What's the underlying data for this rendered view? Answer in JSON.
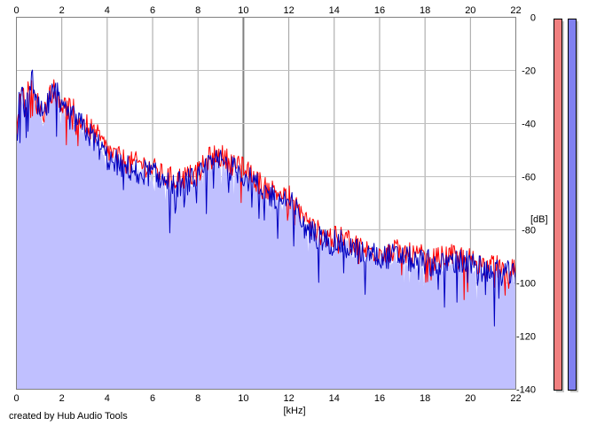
{
  "chart_data": {
    "type": "line",
    "xlabel": "[kHz]",
    "ylabel": "[dB]",
    "xlim": [
      0,
      22
    ],
    "ylim": [
      -140,
      0
    ],
    "x_ticks": [
      0,
      2,
      4,
      6,
      8,
      10,
      12,
      14,
      16,
      18,
      20,
      22
    ],
    "y_ticks": [
      0,
      -20,
      -40,
      -60,
      -80,
      -100,
      -120,
      -140
    ],
    "y_tick_labels": [
      "0",
      "-20",
      "-40",
      "-60",
      "-80",
      "-100",
      "-120",
      "-140"
    ],
    "grid": true,
    "fill_color": "#c0c0ff",
    "series": [
      {
        "color": "#ff0000",
        "x": [
          0,
          0.1,
          0.2,
          0.3,
          0.4,
          0.5,
          0.6,
          0.7,
          0.8,
          1,
          1.2,
          1.5,
          1.8,
          2,
          2.5,
          3,
          3.5,
          4,
          4.5,
          5,
          5.5,
          6,
          6.5,
          7,
          7.5,
          8,
          8.5,
          9,
          9.5,
          10,
          10.5,
          11,
          11.5,
          12,
          12.5,
          13,
          13.5,
          14,
          14.5,
          15,
          15.5,
          16,
          16.5,
          17,
          17.5,
          18,
          18.5,
          19,
          19.5,
          20,
          20.5,
          21,
          21.5,
          22
        ],
        "values": [
          -45,
          -32,
          -26,
          -30,
          -33,
          -29,
          -24,
          -28,
          -31,
          -33,
          -36,
          -28,
          -27,
          -33,
          -35,
          -40,
          -44,
          -50,
          -53,
          -55,
          -55,
          -57,
          -60,
          -61,
          -60,
          -59,
          -53,
          -52,
          -55,
          -57,
          -61,
          -64,
          -66,
          -67,
          -73,
          -79,
          -82,
          -83,
          -83,
          -86,
          -88,
          -88,
          -88,
          -88,
          -90,
          -90,
          -91,
          -90,
          -90,
          -91,
          -93,
          -94,
          -94,
          -96
        ]
      },
      {
        "color": "#0000c0",
        "x": [
          0,
          0.1,
          0.2,
          0.3,
          0.4,
          0.5,
          0.6,
          0.7,
          0.8,
          1,
          1.2,
          1.5,
          1.8,
          2,
          2.5,
          3,
          3.5,
          4,
          4.5,
          5,
          5.5,
          6,
          6.5,
          7,
          7.5,
          8,
          8.5,
          9,
          9.5,
          10,
          10.5,
          11,
          11.5,
          12,
          12.5,
          13,
          13.5,
          14,
          14.5,
          15,
          15.5,
          16,
          16.5,
          17,
          17.5,
          18,
          18.5,
          19,
          19.5,
          20,
          20.5,
          21,
          21.5,
          22
        ],
        "values": [
          -48,
          -34,
          -28,
          -32,
          -35,
          -31,
          -26,
          -22,
          -33,
          -35,
          -38,
          -30,
          -29,
          -36,
          -38,
          -42,
          -47,
          -53,
          -55,
          -57,
          -58,
          -59,
          -62,
          -63,
          -62,
          -61,
          -55,
          -54,
          -57,
          -59,
          -63,
          -66,
          -68,
          -69,
          -75,
          -81,
          -84,
          -85,
          -85,
          -88,
          -89,
          -90,
          -90,
          -90,
          -92,
          -92,
          -93,
          -92,
          -92,
          -93,
          -95,
          -96,
          -96,
          -98
        ]
      }
    ],
    "level_meters": [
      {
        "color": "#f08080",
        "level": 1.0
      },
      {
        "color": "#8080f0",
        "level": 1.0
      }
    ]
  },
  "credit": "created by Hub Audio Tools"
}
